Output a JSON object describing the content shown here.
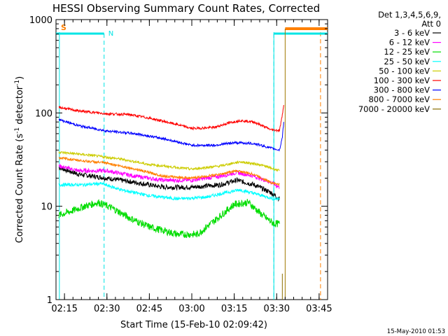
{
  "chart_data": {
    "type": "line",
    "title": "HESSI Observing Summary Count Rates, Corrected",
    "xlabel": "Start Time (15-Feb-10 02:09:42)",
    "ylabel_main": "Corrected Count Rate (s",
    "ylabel_sup1": "-1",
    "ylabel_mid": " detector",
    "ylabel_sup2": "-1",
    "ylabel_end": ")",
    "x_scale": "time",
    "x_start": "02:12",
    "x_end": "03:48",
    "xticks": [
      {
        "t": "02:15",
        "label": "02:15"
      },
      {
        "t": "02:30",
        "label": "02:30"
      },
      {
        "t": "02:45",
        "label": "02:45"
      },
      {
        "t": "03:00",
        "label": "03:00"
      },
      {
        "t": "03:15",
        "label": "03:15"
      },
      {
        "t": "03:30",
        "label": "03:30"
      },
      {
        "t": "03:45",
        "label": "03:45"
      }
    ],
    "y_scale": "log",
    "ylim": [
      1,
      1000
    ],
    "yticks": [
      {
        "v": 1,
        "label": "1"
      },
      {
        "v": 10,
        "label": "10"
      },
      {
        "v": 100,
        "label": "100"
      },
      {
        "v": 1000,
        "label": "1000"
      }
    ],
    "legend_header": [
      "Det 1,3,4,5,6,9,",
      "Att 0"
    ],
    "legend_position": "right",
    "series": [
      {
        "name": "3 - 6 keV",
        "color": "#000000",
        "noise": 0.06,
        "points": [
          [
            "02:13",
            26
          ],
          [
            "02:20",
            22
          ],
          [
            "02:30",
            20
          ],
          [
            "02:40",
            18
          ],
          [
            "02:50",
            16
          ],
          [
            "03:00",
            16
          ],
          [
            "03:10",
            17
          ],
          [
            "03:16",
            19
          ],
          [
            "03:22",
            17
          ],
          [
            "03:28",
            14
          ],
          [
            "03:31",
            12
          ]
        ]
      },
      {
        "name": "6 - 12 keV",
        "color": "#ff00ff",
        "noise": 0.05,
        "points": [
          [
            "02:13",
            27
          ],
          [
            "02:20",
            24
          ],
          [
            "02:30",
            24
          ],
          [
            "02:40",
            21
          ],
          [
            "02:50",
            19
          ],
          [
            "03:00",
            19
          ],
          [
            "03:10",
            21
          ],
          [
            "03:16",
            23
          ],
          [
            "03:22",
            21
          ],
          [
            "03:28",
            18
          ],
          [
            "03:31",
            16
          ]
        ]
      },
      {
        "name": "12 - 25 keV",
        "color": "#00dd00",
        "noise": 0.09,
        "points": [
          [
            "02:13",
            8
          ],
          [
            "02:18",
            9
          ],
          [
            "02:22",
            10
          ],
          [
            "02:27",
            11
          ],
          [
            "02:32",
            9.5
          ],
          [
            "02:38",
            7.5
          ],
          [
            "02:45",
            6
          ],
          [
            "02:55",
            5
          ],
          [
            "03:02",
            5
          ],
          [
            "03:08",
            7
          ],
          [
            "03:15",
            10.5
          ],
          [
            "03:20",
            11
          ],
          [
            "03:25",
            8
          ],
          [
            "03:29",
            6.5
          ],
          [
            "03:31",
            6.5
          ]
        ]
      },
      {
        "name": "25 - 50 keV",
        "color": "#00ffff",
        "noise": 0.04,
        "points": [
          [
            "02:13",
            17
          ],
          [
            "02:22",
            17
          ],
          [
            "02:28",
            17.5
          ],
          [
            "02:35",
            15
          ],
          [
            "02:45",
            13
          ],
          [
            "02:55",
            12
          ],
          [
            "03:05",
            12.5
          ],
          [
            "03:12",
            14
          ],
          [
            "03:17",
            15
          ],
          [
            "03:23",
            13.5
          ],
          [
            "03:29",
            12
          ],
          [
            "03:31",
            12
          ]
        ]
      },
      {
        "name": "50 - 100 keV",
        "color": "#cccc00",
        "noise": 0.03,
        "points": [
          [
            "02:13",
            38
          ],
          [
            "02:25",
            35
          ],
          [
            "02:35",
            32
          ],
          [
            "02:45",
            28
          ],
          [
            "03:00",
            25
          ],
          [
            "03:10",
            27
          ],
          [
            "03:17",
            30
          ],
          [
            "03:24",
            28
          ],
          [
            "03:31",
            24
          ]
        ]
      },
      {
        "name": "100 - 300 keV",
        "color": "#ff0000",
        "noise": 0.03,
        "points": [
          [
            "02:13",
            115
          ],
          [
            "02:20",
            105
          ],
          [
            "02:30",
            98
          ],
          [
            "02:38",
            96
          ],
          [
            "02:45",
            88
          ],
          [
            "02:55",
            75
          ],
          [
            "03:00",
            68
          ],
          [
            "03:08",
            70
          ],
          [
            "03:13",
            78
          ],
          [
            "03:17",
            83
          ],
          [
            "03:22",
            80
          ],
          [
            "03:28",
            66
          ],
          [
            "03:31",
            65
          ],
          [
            "03:32",
            95
          ],
          [
            "03:32.5",
            125
          ]
        ]
      },
      {
        "name": "300 - 800 keV",
        "color": "#0000ff",
        "noise": 0.03,
        "points": [
          [
            "02:13",
            85
          ],
          [
            "02:20",
            73
          ],
          [
            "02:30",
            64
          ],
          [
            "02:40",
            60
          ],
          [
            "02:50",
            53
          ],
          [
            "03:00",
            45
          ],
          [
            "03:08",
            45
          ],
          [
            "03:15",
            48
          ],
          [
            "03:22",
            47
          ],
          [
            "03:28",
            42
          ],
          [
            "03:31",
            40
          ],
          [
            "03:32",
            55
          ],
          [
            "03:32.5",
            80
          ]
        ]
      },
      {
        "name": "800 - 7000 keV",
        "color": "#ff8000",
        "noise": 0.03,
        "points": [
          [
            "02:13",
            33
          ],
          [
            "02:20",
            31
          ],
          [
            "02:30",
            29
          ],
          [
            "02:40",
            25
          ],
          [
            "02:50",
            21
          ],
          [
            "03:00",
            20
          ],
          [
            "03:10",
            22
          ],
          [
            "03:16",
            24
          ],
          [
            "03:22",
            22
          ],
          [
            "03:28",
            18
          ],
          [
            "03:31",
            17
          ]
        ]
      },
      {
        "name": "7000 - 20000 keV",
        "color": "#8b6d00",
        "noise": 0.0,
        "points": []
      }
    ],
    "attenuator_bar": {
      "label": "S",
      "color": "#ff8000",
      "segments": [
        [
          "02:12",
          "02:29"
        ],
        [
          "03:33",
          "03:48"
        ]
      ]
    },
    "night_bar": {
      "label": "N",
      "color": "#00e5e5",
      "segments": [
        [
          "02:12",
          "02:29"
        ],
        [
          "03:29",
          "03:48"
        ]
      ]
    },
    "night_lines": [
      "02:29",
      "03:29"
    ],
    "vertical_lines": [
      {
        "t": "02:13.2",
        "color": "#00e5e5",
        "style": "solid"
      },
      {
        "t": "03:29",
        "color": "#00e5e5",
        "style": "solid"
      },
      {
        "t": "03:45.5",
        "color": "#ff8000",
        "style": "dashed"
      }
    ]
  },
  "footer": {
    "stamp": "15-May-2010 01:53"
  }
}
